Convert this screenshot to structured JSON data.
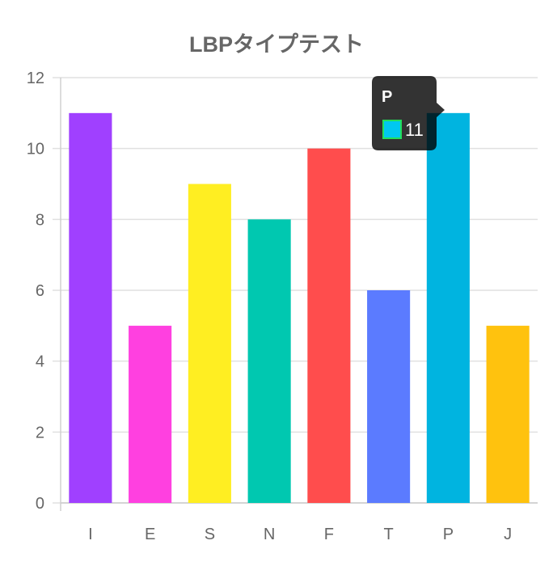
{
  "chart_data": {
    "type": "bar",
    "title": "LBPタイプテスト",
    "categories": [
      "I",
      "E",
      "S",
      "N",
      "F",
      "T",
      "P",
      "J"
    ],
    "values": [
      11,
      5,
      9,
      8,
      10,
      6,
      11,
      5
    ],
    "colors": [
      "#a040ff",
      "#ff40e0",
      "#ffee22",
      "#00c8b0",
      "#ff4d4d",
      "#5b7bff",
      "#00b4e0",
      "#ffc20e"
    ],
    "ylim": [
      0,
      12
    ],
    "yticks": [
      "0",
      "2",
      "4",
      "6",
      "8",
      "10",
      "12"
    ],
    "grid": true,
    "legend": "none",
    "tooltip": {
      "category": "P",
      "value": "11",
      "swatch_fill": "#00c8f0",
      "swatch_border": "#22e05a"
    }
  }
}
